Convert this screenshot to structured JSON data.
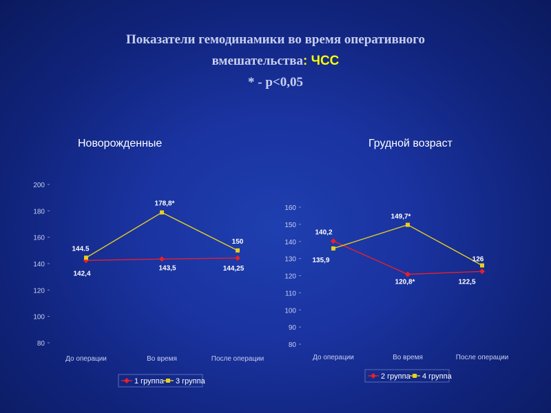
{
  "slide": {
    "title_line1": "Показатели гемодинамики во время оперативного",
    "title_line2_main": "вмешательства",
    "title_line2_accent": ": ЧСС",
    "title_line3": "* - р<0,05",
    "colors": {
      "background": "#1a33a0",
      "title_text": "#c8cff0",
      "title_accent": "#ffff00",
      "series_red": "#e8202a",
      "series_yellow": "#e8d020"
    }
  },
  "chart_data": [
    {
      "type": "line",
      "title": "Новорожденные",
      "categories": [
        "До операции",
        "Во время",
        "После операции"
      ],
      "yticks": [
        "200",
        "180",
        "160",
        "140",
        "120",
        "100",
        "80"
      ],
      "ylim": [
        80,
        200
      ],
      "grid": false,
      "legend": "bottom",
      "series": [
        {
          "name": "1 группа",
          "color": "#e8202a",
          "marker": "diamond",
          "values": [
            142.4,
            143.5,
            144.25
          ],
          "labels": [
            "142,4",
            "143,5",
            "144,25"
          ]
        },
        {
          "name": "3 группа",
          "color": "#e8d020",
          "marker": "square",
          "values": [
            144.5,
            178.8,
            150
          ],
          "labels": [
            "144.5",
            "178,8*",
            "150"
          ]
        }
      ]
    },
    {
      "type": "line",
      "title": "Грудной возраст",
      "categories": [
        "До операции",
        "Во время",
        "После операции"
      ],
      "yticks": [
        "160",
        "150",
        "140",
        "130",
        "120",
        "110",
        "100",
        "90",
        "80"
      ],
      "ylim": [
        80,
        160
      ],
      "grid": false,
      "legend": "bottom",
      "series": [
        {
          "name": "2 группа",
          "color": "#e8202a",
          "marker": "diamond",
          "values": [
            140.2,
            120.8,
            122.5
          ],
          "labels": [
            "140,2",
            "120,8*",
            "122,5"
          ]
        },
        {
          "name": "4 группа",
          "color": "#e8d020",
          "marker": "square",
          "values": [
            135.9,
            149.7,
            126
          ],
          "labels": [
            "135,9",
            "149,7*",
            "126"
          ]
        }
      ]
    }
  ]
}
